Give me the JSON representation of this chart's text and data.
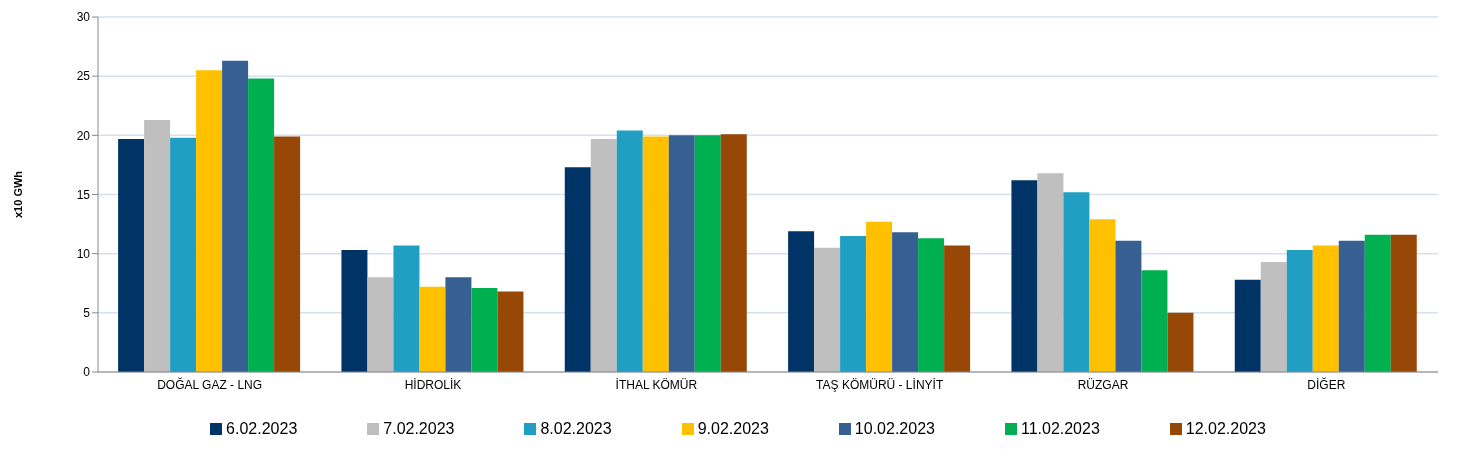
{
  "chart_data": {
    "type": "bar",
    "ylabel": "x10 GWh",
    "categories": [
      "DOĞAL GAZ - LNG",
      "HİDROLİK",
      "İTHAL KÖMÜR",
      "TAŞ KÖMÜRÜ - LİNYİT",
      "RÜZGAR",
      "DİĞER"
    ],
    "series": [
      {
        "name": "6.02.2023",
        "color": "#003366",
        "values": [
          19.7,
          10.3,
          17.3,
          11.9,
          16.2,
          7.8
        ]
      },
      {
        "name": "7.02.2023",
        "color": "#bfbfbf",
        "values": [
          21.3,
          8.0,
          19.7,
          10.5,
          16.8,
          9.3
        ]
      },
      {
        "name": "8.02.2023",
        "color": "#209fc2",
        "values": [
          19.8,
          10.7,
          20.4,
          11.5,
          15.2,
          10.3
        ]
      },
      {
        "name": "9.02.2023",
        "color": "#ffc000",
        "values": [
          25.5,
          7.2,
          19.9,
          12.7,
          12.9,
          10.7
        ]
      },
      {
        "name": "10.02.2023",
        "color": "#366092",
        "values": [
          26.3,
          8.0,
          20.0,
          11.8,
          11.1,
          11.1
        ]
      },
      {
        "name": "11.02.2023",
        "color": "#00b050",
        "values": [
          24.8,
          7.1,
          20.0,
          11.3,
          8.6,
          11.6
        ]
      },
      {
        "name": "12.02.2023",
        "color": "#974706",
        "values": [
          19.9,
          6.8,
          20.1,
          10.7,
          5.0,
          11.6
        ]
      }
    ],
    "ylim": [
      0,
      30
    ],
    "yticks": [
      0,
      5,
      10,
      15,
      20,
      25,
      30
    ],
    "grid": "y",
    "legend": "bottom"
  }
}
